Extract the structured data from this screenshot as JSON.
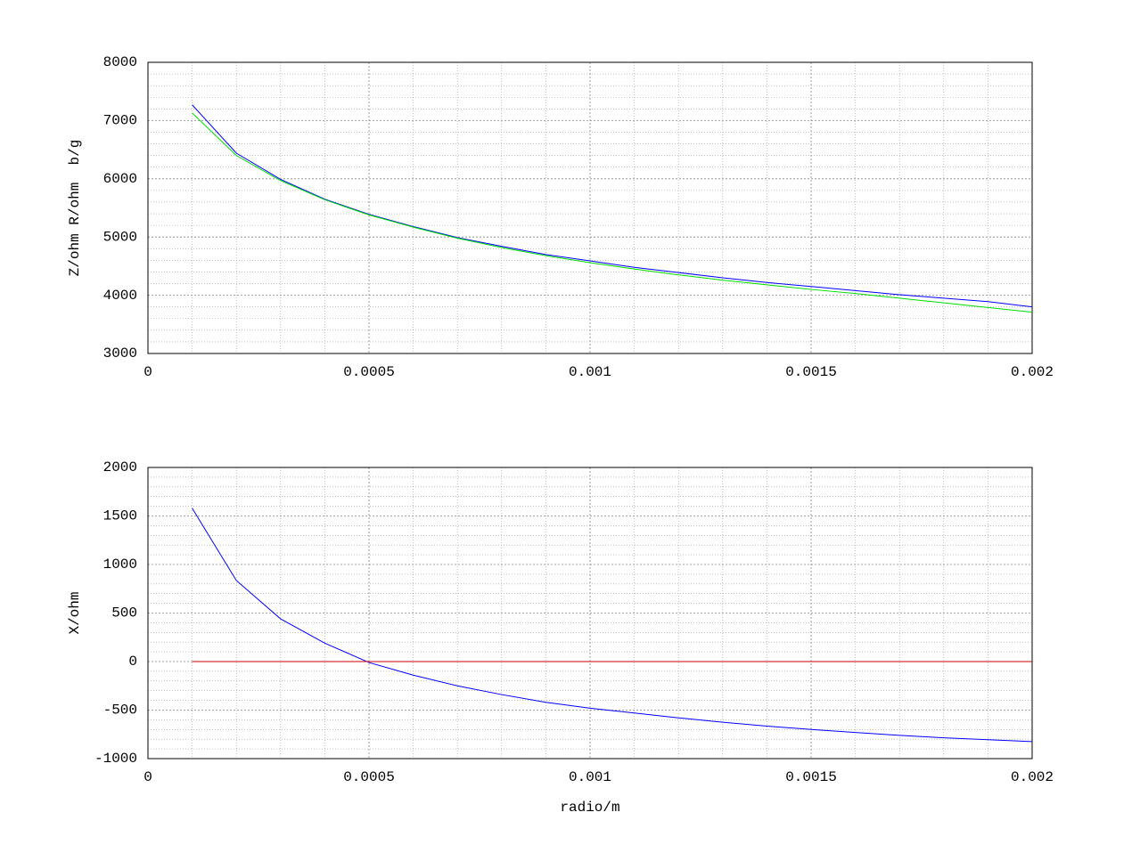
{
  "chart_data": [
    {
      "type": "line",
      "ylabel": "Z/ohm R/ohm  b/g",
      "x": [
        0.0001,
        0.0002,
        0.0003,
        0.0004,
        0.0005,
        0.0006,
        0.0007,
        0.0008,
        0.0009,
        0.001,
        0.0011,
        0.0012,
        0.0013,
        0.0014,
        0.0015,
        0.0016,
        0.0017,
        0.0018,
        0.0019,
        0.002
      ],
      "series": [
        {
          "color": "#0000ff",
          "values": [
            7270,
            6440,
            5990,
            5650,
            5390,
            5180,
            4990,
            4840,
            4700,
            4590,
            4480,
            4390,
            4300,
            4220,
            4150,
            4080,
            4010,
            3950,
            3890,
            3800
          ]
        },
        {
          "color": "#00dd00",
          "values": [
            7130,
            6400,
            5970,
            5640,
            5380,
            5170,
            4980,
            4820,
            4680,
            4560,
            4450,
            4350,
            4260,
            4180,
            4100,
            4030,
            3950,
            3870,
            3790,
            3710
          ]
        }
      ],
      "xlim": [
        0,
        0.002
      ],
      "xticks": [
        0,
        0.0005,
        0.001,
        0.0015,
        0.002
      ],
      "ylim": [
        3000,
        8000
      ],
      "yticks": [
        3000,
        4000,
        5000,
        6000,
        7000,
        8000
      ],
      "grid": true,
      "minor_grid": 5
    },
    {
      "type": "line",
      "ylabel": "X/ohm",
      "xlabel": "radio/m",
      "x": [
        0.0001,
        0.0002,
        0.0003,
        0.0004,
        0.0005,
        0.0006,
        0.0007,
        0.0008,
        0.0009,
        0.001,
        0.0011,
        0.0012,
        0.0013,
        0.0014,
        0.0015,
        0.0016,
        0.0017,
        0.0018,
        0.0019,
        0.002
      ],
      "series": [
        {
          "color": "#0000ff",
          "values": [
            1580,
            835,
            440,
            190,
            -10,
            -140,
            -250,
            -340,
            -420,
            -480,
            -530,
            -580,
            -625,
            -665,
            -700,
            -730,
            -760,
            -785,
            -805,
            -825
          ]
        },
        {
          "color": "#cc0000",
          "values": [
            0,
            0,
            0,
            0,
            0,
            0,
            0,
            0,
            0,
            0,
            0,
            0,
            0,
            0,
            0,
            0,
            0,
            0,
            0,
            0
          ]
        }
      ],
      "xlim": [
        0,
        0.002
      ],
      "xticks": [
        0,
        0.0005,
        0.001,
        0.0015,
        0.002
      ],
      "ylim": [
        -1000,
        2000
      ],
      "yticks": [
        -1000,
        -500,
        0,
        500,
        1000,
        1500,
        2000
      ],
      "grid": true,
      "minor_grid": 5
    }
  ]
}
